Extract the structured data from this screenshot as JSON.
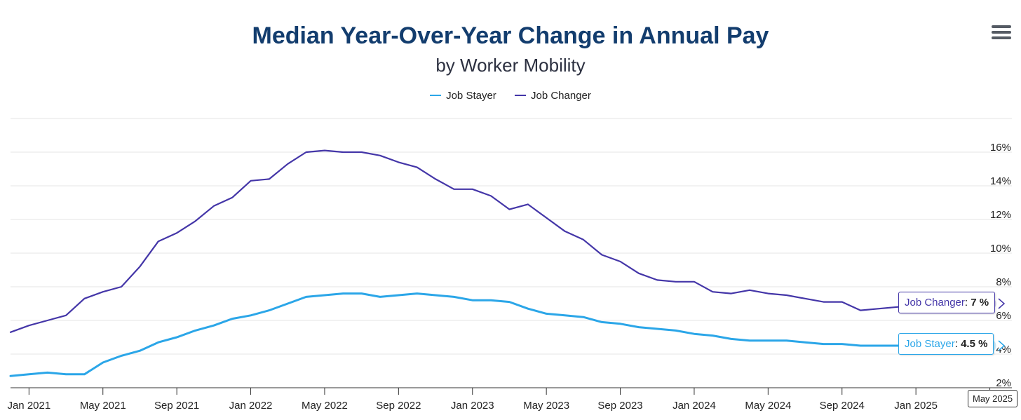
{
  "title": "Median Year-Over-Year Change in Annual Pay",
  "subtitle": "by Worker Mobility",
  "menu_icon": "hamburger-menu-icon",
  "chart_data": {
    "type": "line",
    "title": "Median Year-Over-Year Change in Annual Pay",
    "subtitle": "by Worker Mobility",
    "xlabel": "",
    "ylabel": "",
    "x_tick_labels": [
      "Jan 2021",
      "May 2021",
      "Sep 2021",
      "Jan 2022",
      "May 2022",
      "Sep 2022",
      "Jan 2023",
      "May 2023",
      "Sep 2023",
      "Jan 2024",
      "May 2024",
      "Sep 2024",
      "Jan 2025",
      "May 2025"
    ],
    "y_tick_labels": [
      "2%",
      "4%",
      "6%",
      "8%",
      "10%",
      "12%",
      "14%",
      "16%"
    ],
    "y_ticks": [
      2,
      4,
      6,
      8,
      10,
      12,
      14,
      16
    ],
    "ylim": [
      2,
      18
    ],
    "y_axis_position": "right",
    "grid": true,
    "legend_position": "top-center",
    "x": [
      "2020-12",
      "2021-01",
      "2021-02",
      "2021-03",
      "2021-04",
      "2021-05",
      "2021-06",
      "2021-07",
      "2021-08",
      "2021-09",
      "2021-10",
      "2021-11",
      "2021-12",
      "2022-01",
      "2022-02",
      "2022-03",
      "2022-04",
      "2022-05",
      "2022-06",
      "2022-07",
      "2022-08",
      "2022-09",
      "2022-10",
      "2022-11",
      "2022-12",
      "2023-01",
      "2023-02",
      "2023-03",
      "2023-04",
      "2023-05",
      "2023-06",
      "2023-07",
      "2023-08",
      "2023-09",
      "2023-10",
      "2023-11",
      "2023-12",
      "2024-01",
      "2024-02",
      "2024-03",
      "2024-04",
      "2024-05",
      "2024-06",
      "2024-07",
      "2024-08",
      "2024-09",
      "2024-10",
      "2024-11",
      "2024-12",
      "2025-01",
      "2025-02",
      "2025-03",
      "2025-04",
      "2025-05"
    ],
    "series": [
      {
        "name": "Job Stayer",
        "color": "#2ba6e8",
        "values": [
          2.7,
          2.8,
          2.9,
          2.8,
          2.8,
          3.5,
          3.9,
          4.2,
          4.7,
          5.0,
          5.4,
          5.7,
          6.1,
          6.3,
          6.6,
          7.0,
          7.4,
          7.5,
          7.6,
          7.6,
          7.4,
          7.5,
          7.6,
          7.5,
          7.4,
          7.2,
          7.2,
          7.1,
          6.7,
          6.4,
          6.3,
          6.2,
          5.9,
          5.8,
          5.6,
          5.5,
          5.4,
          5.2,
          5.1,
          4.9,
          4.8,
          4.8,
          4.8,
          4.7,
          4.6,
          4.6,
          4.5,
          4.5,
          4.5,
          4.5,
          4.5,
          4.5,
          4.5,
          4.5
        ]
      },
      {
        "name": "Job Changer",
        "color": "#4436a8",
        "values": [
          5.3,
          5.7,
          6.0,
          6.3,
          7.3,
          7.7,
          8.0,
          9.2,
          10.7,
          11.2,
          11.9,
          12.8,
          13.3,
          14.3,
          14.4,
          15.3,
          16.0,
          16.1,
          16.0,
          16.0,
          15.8,
          15.4,
          15.1,
          14.4,
          13.8,
          13.8,
          13.4,
          12.6,
          12.9,
          12.1,
          11.3,
          10.8,
          9.9,
          9.5,
          8.8,
          8.4,
          8.3,
          8.3,
          7.7,
          7.6,
          7.8,
          7.6,
          7.5,
          7.3,
          7.1,
          7.1,
          6.6,
          6.7,
          6.8,
          6.9,
          6.9,
          7.0,
          7.0,
          7.0
        ]
      }
    ]
  },
  "tooltips": {
    "changer": {
      "series": "Job Changer",
      "value": "7 %"
    },
    "stayer": {
      "series": "Job Stayer",
      "value": "4.5 %"
    },
    "x_flag": "May 2025"
  }
}
